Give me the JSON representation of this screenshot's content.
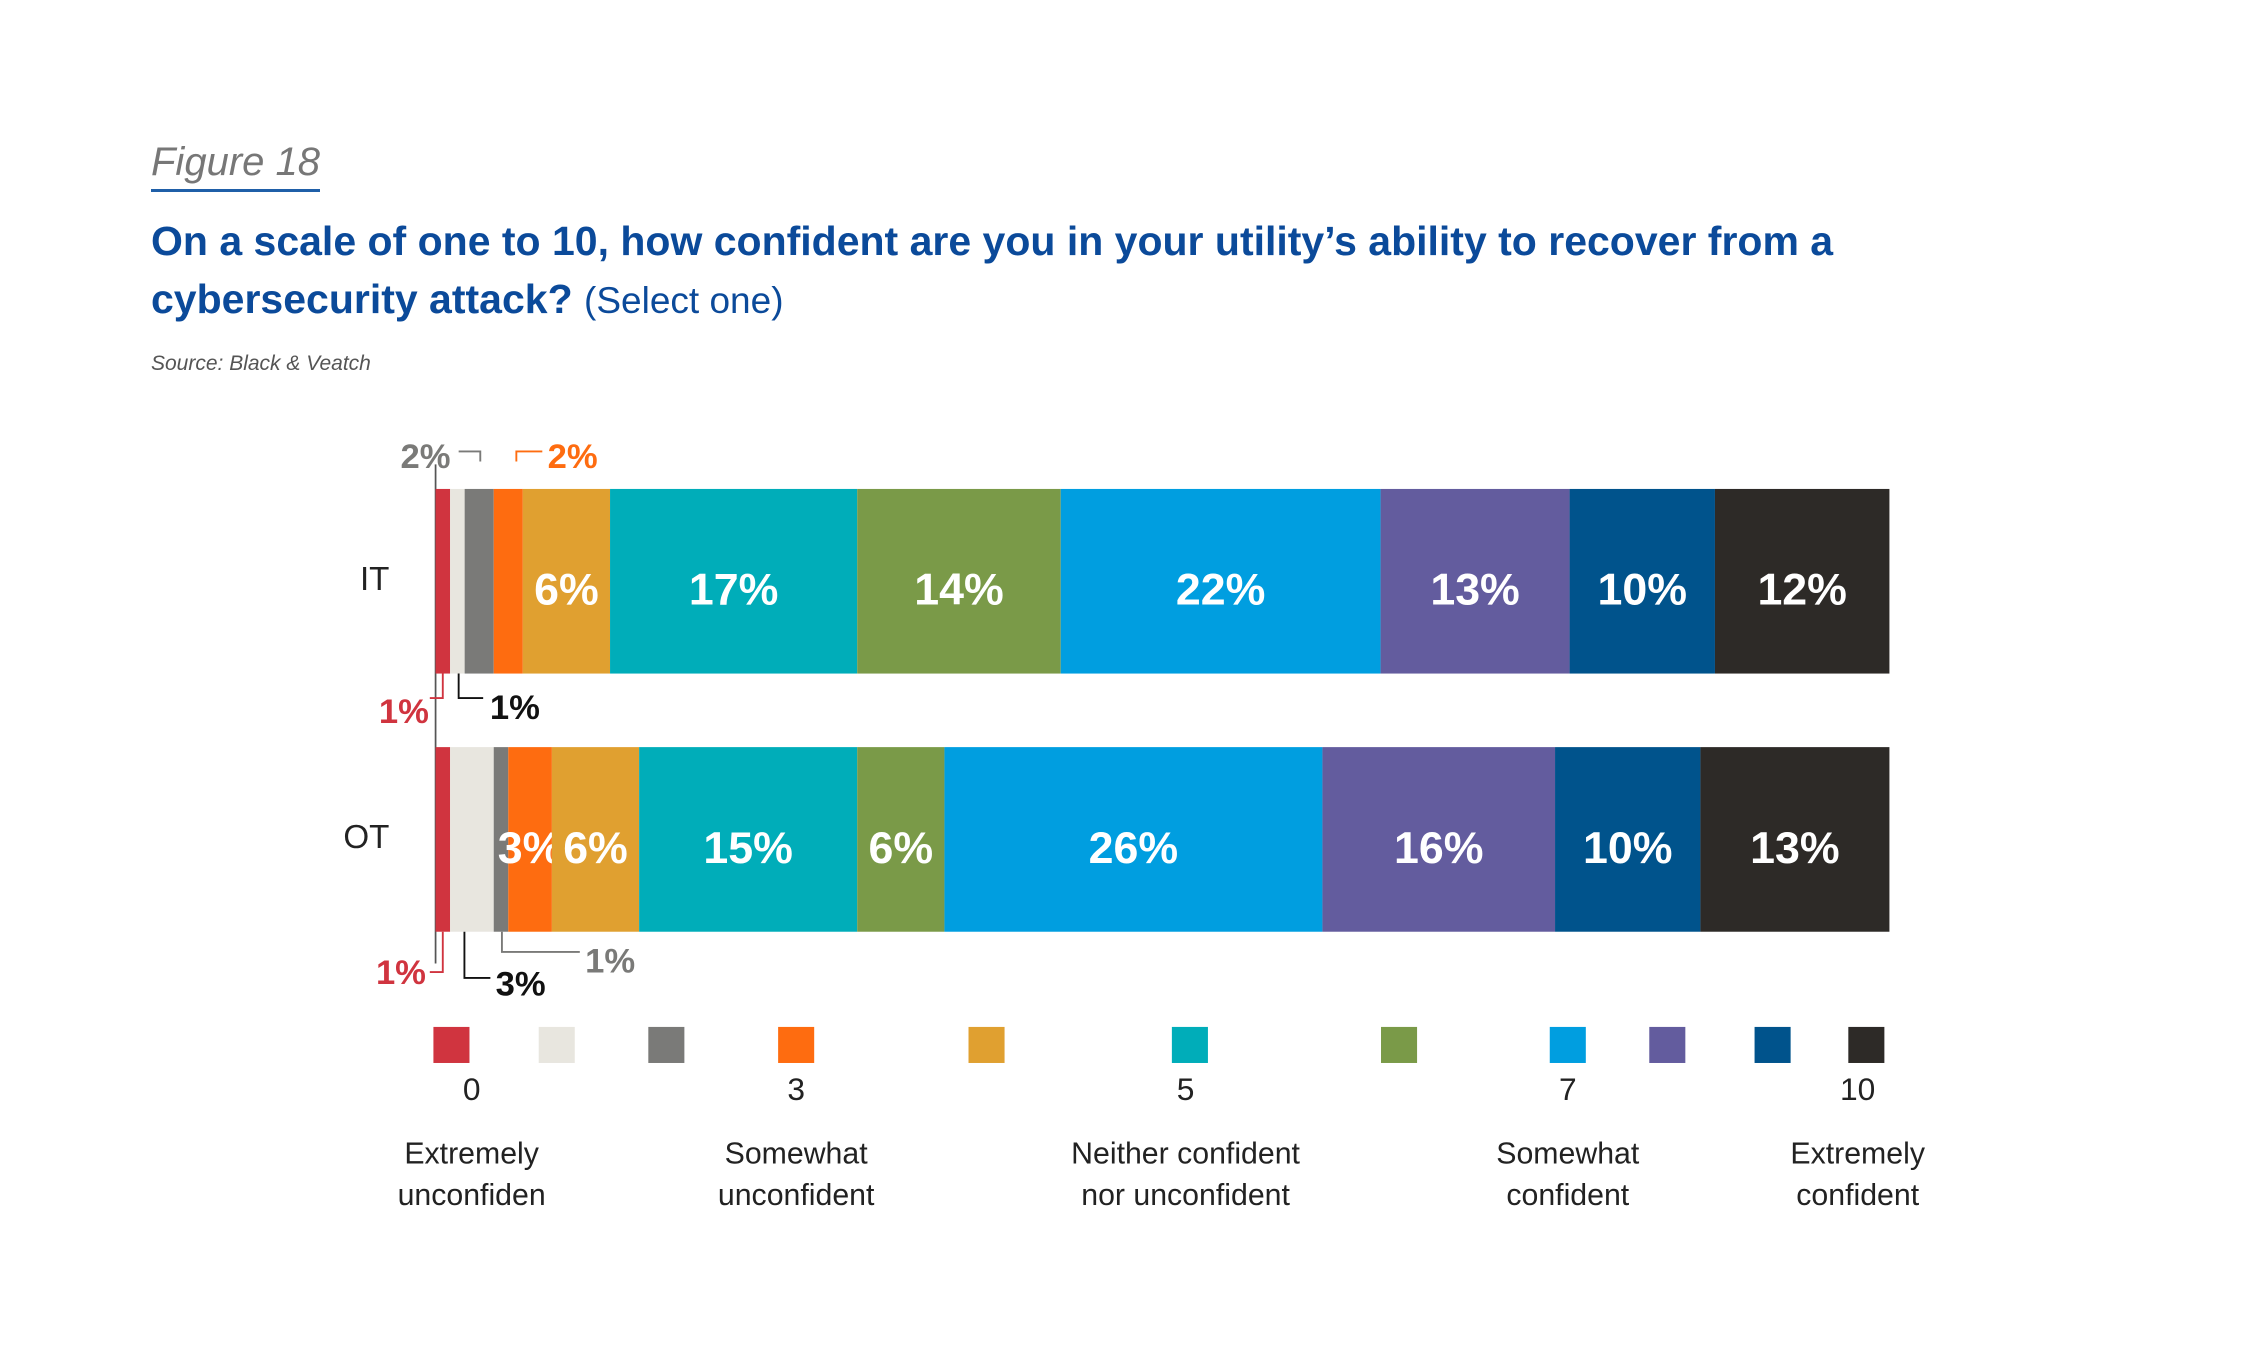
{
  "figure_label": "Figure 18",
  "chart_data": {
    "type": "bar",
    "orientation": "horizontal",
    "stacked": true,
    "title": "On a scale of one to 10, how confident are you in your utility’s ability to recover from a cybersecurity attack?",
    "subtitle": "(Select one)",
    "source": "Source: Black & Veatch",
    "categories": [
      "IT",
      "OT"
    ],
    "xlim": [
      0,
      100
    ],
    "series": [
      {
        "name": "0",
        "description": [
          "Extremely",
          "unconfiden"
        ],
        "color": "#d0343f",
        "values": [
          1,
          1
        ],
        "value_labels": [
          "1%",
          "1%"
        ]
      },
      {
        "name": null,
        "color": "#e8e6df",
        "values": [
          1,
          3
        ],
        "value_labels": [
          "1%",
          "3%"
        ]
      },
      {
        "name": null,
        "color": "#7a7a78",
        "values": [
          2,
          1
        ],
        "value_labels": [
          "2%",
          "1%"
        ]
      },
      {
        "name": "3",
        "description": [
          "Somewhat",
          "unconfident"
        ],
        "color": "#fe6c10",
        "values": [
          2,
          3
        ],
        "value_labels": [
          "2%",
          "3%"
        ]
      },
      {
        "name": null,
        "color": "#e0a030",
        "values": [
          6,
          6
        ],
        "value_labels": [
          "6%",
          "6%"
        ]
      },
      {
        "name": "5",
        "description": [
          "Neither confident",
          "nor unconfident"
        ],
        "color": "#00adb9",
        "values": [
          17,
          15
        ],
        "value_labels": [
          "17%",
          "15%"
        ]
      },
      {
        "name": null,
        "color": "#7a9a48",
        "values": [
          14,
          6
        ],
        "value_labels": [
          "14%",
          "6%"
        ]
      },
      {
        "name": "7",
        "description": [
          "Somewhat",
          "confident"
        ],
        "color": "#009ee0",
        "values": [
          22,
          26
        ],
        "value_labels": [
          "22%",
          "26%"
        ]
      },
      {
        "name": null,
        "color": "#635c9e",
        "values": [
          13,
          16
        ],
        "value_labels": [
          "13%",
          "16%"
        ]
      },
      {
        "name": null,
        "color": "#00538c",
        "values": [
          10,
          10
        ],
        "value_labels": [
          "10%",
          "10%"
        ]
      },
      {
        "name": "10",
        "description": [
          "Extremely",
          "confident"
        ],
        "color": "#2d2a27",
        "values": [
          12,
          13
        ],
        "value_labels": [
          "12%",
          "13%"
        ]
      }
    ]
  }
}
